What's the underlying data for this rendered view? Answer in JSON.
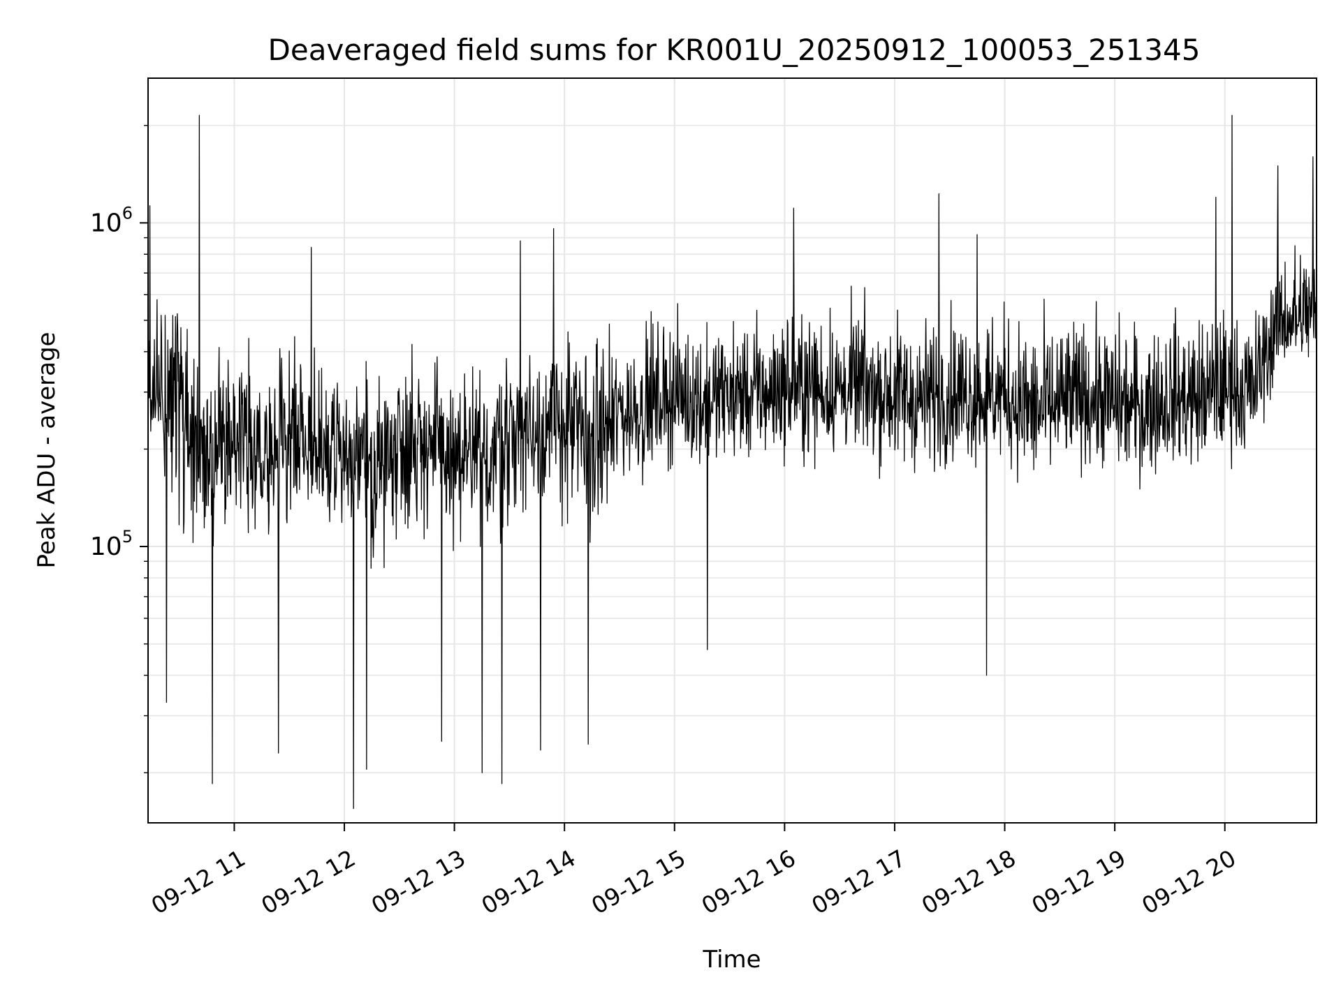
{
  "chart_data": {
    "type": "line",
    "title": "Deaveraged field sums for KR001U_20250912_100053_251345",
    "xlabel": "Time",
    "ylabel": "Peak ADU - average",
    "x_type": "datetime",
    "x_start": "2025-09-12 10:13",
    "x_end": "2025-09-12 20:50",
    "xlim": [
      "2025-09-12 10:13",
      "2025-09-12 20:50"
    ],
    "yscale": "log",
    "ylim": [
      14000,
      2800000
    ],
    "grid": true,
    "line_color": "#000000",
    "grid_color": "#e6e6e6",
    "xticks": [
      {
        "value": "2025-09-12 11:00",
        "label": "09-12 11"
      },
      {
        "value": "2025-09-12 12:00",
        "label": "09-12 12"
      },
      {
        "value": "2025-09-12 13:00",
        "label": "09-12 13"
      },
      {
        "value": "2025-09-12 14:00",
        "label": "09-12 14"
      },
      {
        "value": "2025-09-12 15:00",
        "label": "09-12 15"
      },
      {
        "value": "2025-09-12 16:00",
        "label": "09-12 16"
      },
      {
        "value": "2025-09-12 17:00",
        "label": "09-12 17"
      },
      {
        "value": "2025-09-12 18:00",
        "label": "09-12 18"
      },
      {
        "value": "2025-09-12 19:00",
        "label": "09-12 19"
      },
      {
        "value": "2025-09-12 20:00",
        "label": "09-12 20"
      }
    ],
    "yticks": [
      {
        "value": 100000,
        "base": "10",
        "exp": "5"
      },
      {
        "value": 1000000,
        "base": "10",
        "exp": "6"
      }
    ],
    "series": [
      {
        "x": [
          "2025-09-12 10:13",
          "2025-09-12 10:30",
          "2025-09-12 10:45",
          "2025-09-12 11:00",
          "2025-09-12 11:15",
          "2025-09-12 11:30",
          "2025-09-12 11:45",
          "2025-09-12 12:00",
          "2025-09-12 12:15",
          "2025-09-12 12:30",
          "2025-09-12 12:45",
          "2025-09-12 13:00",
          "2025-09-12 13:15",
          "2025-09-12 13:30",
          "2025-09-12 13:45",
          "2025-09-12 14:00",
          "2025-09-12 14:15",
          "2025-09-12 14:30",
          "2025-09-12 14:45",
          "2025-09-12 15:00",
          "2025-09-12 15:15",
          "2025-09-12 15:30",
          "2025-09-12 15:45",
          "2025-09-12 16:00",
          "2025-09-12 16:15",
          "2025-09-12 16:30",
          "2025-09-12 16:45",
          "2025-09-12 17:00",
          "2025-09-12 17:15",
          "2025-09-12 17:30",
          "2025-09-12 17:45",
          "2025-09-12 18:00",
          "2025-09-12 18:15",
          "2025-09-12 18:30",
          "2025-09-12 18:45",
          "2025-09-12 19:00",
          "2025-09-12 19:15",
          "2025-09-12 19:30",
          "2025-09-12 19:45",
          "2025-09-12 20:00",
          "2025-09-12 20:15",
          "2025-09-12 20:30",
          "2025-09-12 20:50"
        ],
        "y": [
          300000,
          270000,
          200000,
          210000,
          210000,
          220000,
          200000,
          190000,
          170000,
          210000,
          210000,
          180000,
          180000,
          220000,
          230000,
          240000,
          210000,
          250000,
          270000,
          290000,
          280000,
          290000,
          290000,
          300000,
          300000,
          300000,
          300000,
          290000,
          280000,
          290000,
          290000,
          290000,
          260000,
          270000,
          280000,
          270000,
          260000,
          280000,
          280000,
          300000,
          300000,
          480000,
          500000
        ],
        "y_low": [
          230000,
          90000,
          65000,
          100000,
          85000,
          95000,
          90000,
          80000,
          60000,
          95000,
          90000,
          75000,
          70000,
          95000,
          100000,
          100000,
          75000,
          130000,
          140000,
          155000,
          140000,
          155000,
          150000,
          160000,
          155000,
          160000,
          160000,
          140000,
          140000,
          150000,
          150000,
          150000,
          115000,
          140000,
          150000,
          140000,
          130000,
          150000,
          140000,
          160000,
          150000,
          320000,
          330000
        ],
        "y_high": [
          1000000,
          700000,
          500000,
          520000,
          600000,
          600000,
          520000,
          480000,
          440000,
          520000,
          540000,
          480000,
          480000,
          560000,
          560000,
          600000,
          560000,
          600000,
          620000,
          640000,
          600000,
          620000,
          640000,
          700000,
          720000,
          700000,
          720000,
          680000,
          660000,
          700000,
          700000,
          700000,
          640000,
          660000,
          680000,
          660000,
          640000,
          680000,
          680000,
          700000,
          640000,
          1100000,
          1200000
        ],
        "spikes_high": [
          {
            "x": "2025-09-12 10:14",
            "y": 1130000
          },
          {
            "x": "2025-09-12 10:41",
            "y": 2150000
          },
          {
            "x": "2025-09-12 11:42",
            "y": 840000
          },
          {
            "x": "2025-09-12 13:36",
            "y": 880000
          },
          {
            "x": "2025-09-12 13:54",
            "y": 960000
          },
          {
            "x": "2025-09-12 16:05",
            "y": 1110000
          },
          {
            "x": "2025-09-12 17:24",
            "y": 1230000
          },
          {
            "x": "2025-09-12 17:45",
            "y": 920000
          },
          {
            "x": "2025-09-12 19:55",
            "y": 1200000
          },
          {
            "x": "2025-09-12 20:04",
            "y": 2150000
          },
          {
            "x": "2025-09-12 20:29",
            "y": 1500000
          },
          {
            "x": "2025-09-12 20:48",
            "y": 1600000
          }
        ],
        "spikes_low": [
          {
            "x": "2025-09-12 10:23",
            "y": 33000
          },
          {
            "x": "2025-09-12 10:48",
            "y": 18500
          },
          {
            "x": "2025-09-12 11:24",
            "y": 23000
          },
          {
            "x": "2025-09-12 12:05",
            "y": 15500
          },
          {
            "x": "2025-09-12 12:12",
            "y": 20500
          },
          {
            "x": "2025-09-12 12:53",
            "y": 25000
          },
          {
            "x": "2025-09-12 13:15",
            "y": 20000
          },
          {
            "x": "2025-09-12 13:26",
            "y": 18500
          },
          {
            "x": "2025-09-12 13:47",
            "y": 23500
          },
          {
            "x": "2025-09-12 14:13",
            "y": 24500
          },
          {
            "x": "2025-09-12 15:18",
            "y": 48000
          },
          {
            "x": "2025-09-12 17:50",
            "y": 40000
          }
        ]
      }
    ]
  }
}
